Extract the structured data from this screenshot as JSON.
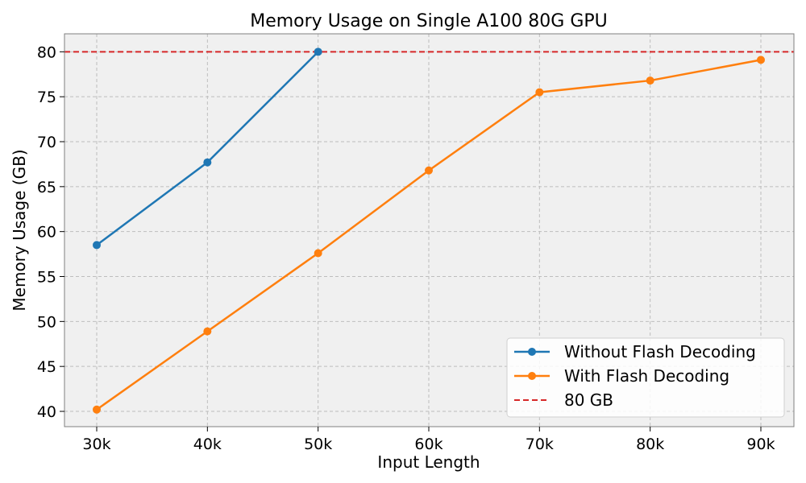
{
  "chart_data": {
    "type": "line",
    "title": "Memory Usage on Single A100 80G GPU",
    "xlabel": "Input Length",
    "ylabel": "Memory Usage (GB)",
    "categories": [
      "30k",
      "40k",
      "50k",
      "60k",
      "70k",
      "80k",
      "90k"
    ],
    "ylim": [
      38.3,
      82.0
    ],
    "yticks": [
      40,
      45,
      50,
      55,
      60,
      65,
      70,
      75,
      80
    ],
    "grid": true,
    "legend_position": "lower-right",
    "series": [
      {
        "name": "Without Flash Decoding",
        "color": "#1f77b4",
        "marker": "circle",
        "values": [
          58.5,
          67.7,
          80.0,
          null,
          null,
          null,
          null
        ]
      },
      {
        "name": "With Flash Decoding",
        "color": "#ff7f0e",
        "marker": "circle",
        "values": [
          40.2,
          48.9,
          57.6,
          66.8,
          75.5,
          76.8,
          79.1
        ]
      }
    ],
    "reference_lines": [
      {
        "name": "80 GB",
        "y": 80,
        "color": "#d62728",
        "style": "dashed"
      }
    ]
  }
}
